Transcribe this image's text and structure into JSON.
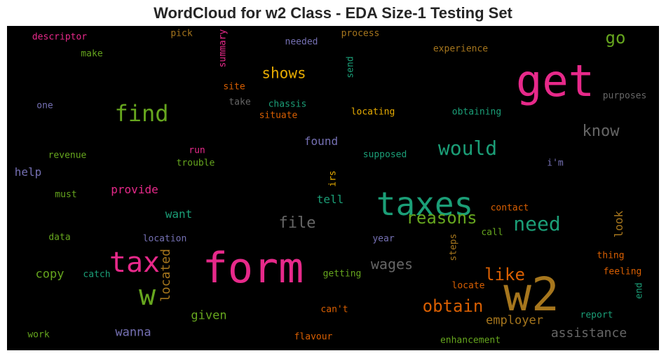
{
  "chart_data": {
    "type": "wordcloud",
    "title": "WordCloud for w2 Class - EDA Size-1 Testing Set",
    "background": "#000000",
    "palette": [
      "#e7298a",
      "#1b9e77",
      "#d95f02",
      "#7570b3",
      "#66a61e",
      "#e6ab02",
      "#a6761d",
      "#666666"
    ],
    "words": [
      {
        "text": "form",
        "color": "#e7298a"
      },
      {
        "text": "w2",
        "color": "#a6761d"
      },
      {
        "text": "taxes",
        "color": "#1b9e77"
      },
      {
        "text": "get",
        "color": "#e7298a"
      },
      {
        "text": "tax",
        "color": "#e7298a"
      },
      {
        "text": "w",
        "color": "#66a61e"
      },
      {
        "text": "find",
        "color": "#66a61e"
      },
      {
        "text": "would",
        "color": "#1b9e77"
      },
      {
        "text": "need",
        "color": "#1b9e77"
      },
      {
        "text": "reasons",
        "color": "#66a61e"
      },
      {
        "text": "obtain",
        "color": "#d95f02"
      },
      {
        "text": "like",
        "color": "#d95f02"
      },
      {
        "text": "file",
        "color": "#666666"
      },
      {
        "text": "know",
        "color": "#666666"
      },
      {
        "text": "shows",
        "color": "#e6ab02"
      },
      {
        "text": "go",
        "color": "#66a61e"
      },
      {
        "text": "wages",
        "color": "#666666"
      },
      {
        "text": "located",
        "color": "#a6761d"
      },
      {
        "text": "assistance",
        "color": "#666666"
      },
      {
        "text": "employer",
        "color": "#a6761d"
      },
      {
        "text": "wanna",
        "color": "#7570b3"
      },
      {
        "text": "given",
        "color": "#66a61e"
      },
      {
        "text": "copy",
        "color": "#66a61e"
      },
      {
        "text": "provide",
        "color": "#e7298a"
      },
      {
        "text": "want",
        "color": "#1b9e77"
      },
      {
        "text": "found",
        "color": "#7570b3"
      },
      {
        "text": "help",
        "color": "#7570b3"
      },
      {
        "text": "tell",
        "color": "#1b9e77"
      },
      {
        "text": "look",
        "color": "#a6761d"
      },
      {
        "text": "descriptor",
        "color": "#e7298a"
      },
      {
        "text": "pick",
        "color": "#a6761d"
      },
      {
        "text": "summary",
        "color": "#e7298a"
      },
      {
        "text": "needed",
        "color": "#7570b3"
      },
      {
        "text": "send",
        "color": "#1b9e77"
      },
      {
        "text": "process",
        "color": "#a6761d"
      },
      {
        "text": "experience",
        "color": "#a6761d"
      },
      {
        "text": "make",
        "color": "#66a61e"
      },
      {
        "text": "site",
        "color": "#d95f02"
      },
      {
        "text": "chassis",
        "color": "#1b9e77"
      },
      {
        "text": "purposes",
        "color": "#666666"
      },
      {
        "text": "one",
        "color": "#7570b3"
      },
      {
        "text": "take",
        "color": "#666666"
      },
      {
        "text": "situate",
        "color": "#d95f02"
      },
      {
        "text": "locating",
        "color": "#e6ab02"
      },
      {
        "text": "obtaining",
        "color": "#1b9e77"
      },
      {
        "text": "revenue",
        "color": "#66a61e"
      },
      {
        "text": "run",
        "color": "#e7298a"
      },
      {
        "text": "trouble",
        "color": "#66a61e"
      },
      {
        "text": "supposed",
        "color": "#1b9e77"
      },
      {
        "text": "i'm",
        "color": "#7570b3"
      },
      {
        "text": "irs",
        "color": "#e6ab02"
      },
      {
        "text": "must",
        "color": "#66a61e"
      },
      {
        "text": "contact",
        "color": "#d95f02"
      },
      {
        "text": "data",
        "color": "#66a61e"
      },
      {
        "text": "location",
        "color": "#7570b3"
      },
      {
        "text": "year",
        "color": "#7570b3"
      },
      {
        "text": "call",
        "color": "#66a61e"
      },
      {
        "text": "steps",
        "color": "#a6761d"
      },
      {
        "text": "thing",
        "color": "#d95f02"
      },
      {
        "text": "catch",
        "color": "#1b9e77"
      },
      {
        "text": "getting",
        "color": "#66a61e"
      },
      {
        "text": "feeling",
        "color": "#d95f02"
      },
      {
        "text": "end",
        "color": "#1b9e77"
      },
      {
        "text": "locate",
        "color": "#d95f02"
      },
      {
        "text": "can't",
        "color": "#d95f02"
      },
      {
        "text": "report",
        "color": "#1b9e77"
      },
      {
        "text": "work",
        "color": "#66a61e"
      },
      {
        "text": "flavour",
        "color": "#d95f02"
      },
      {
        "text": "enhancement",
        "color": "#66a61e"
      }
    ]
  }
}
